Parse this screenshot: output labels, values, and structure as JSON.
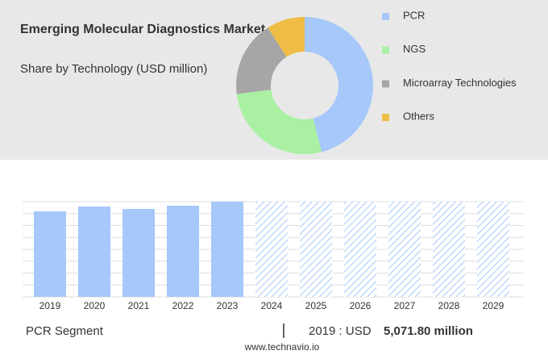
{
  "chart_data": [
    {
      "type": "donut",
      "title": "Emerging Molecular Diagnostics Market",
      "subtitle": "Share by Technology (USD million)",
      "categories": [
        "PCR",
        "NGS",
        "Microarray Technologies",
        "Others"
      ],
      "values": [
        46,
        27,
        18,
        9
      ],
      "colors": [
        "#a6c8fa",
        "#a9f0a3",
        "#a6a6a6",
        "#efbd45"
      ]
    },
    {
      "type": "bar",
      "categories": [
        "2019",
        "2020",
        "2021",
        "2022",
        "2023",
        "2024",
        "2025",
        "2026",
        "2027",
        "2028",
        "2029"
      ],
      "values": [
        5071.8,
        5359,
        5215,
        5407,
        5646,
        null,
        null,
        null,
        null,
        null,
        null
      ],
      "color": "#a6c8fa",
      "ylim": [
        0,
        5646
      ],
      "grid": true,
      "footer": {
        "segment": "PCR Segment",
        "year_label": "2019 : USD",
        "value_label": "5,071.80 million",
        "source": "www.technavio.io"
      }
    }
  ]
}
